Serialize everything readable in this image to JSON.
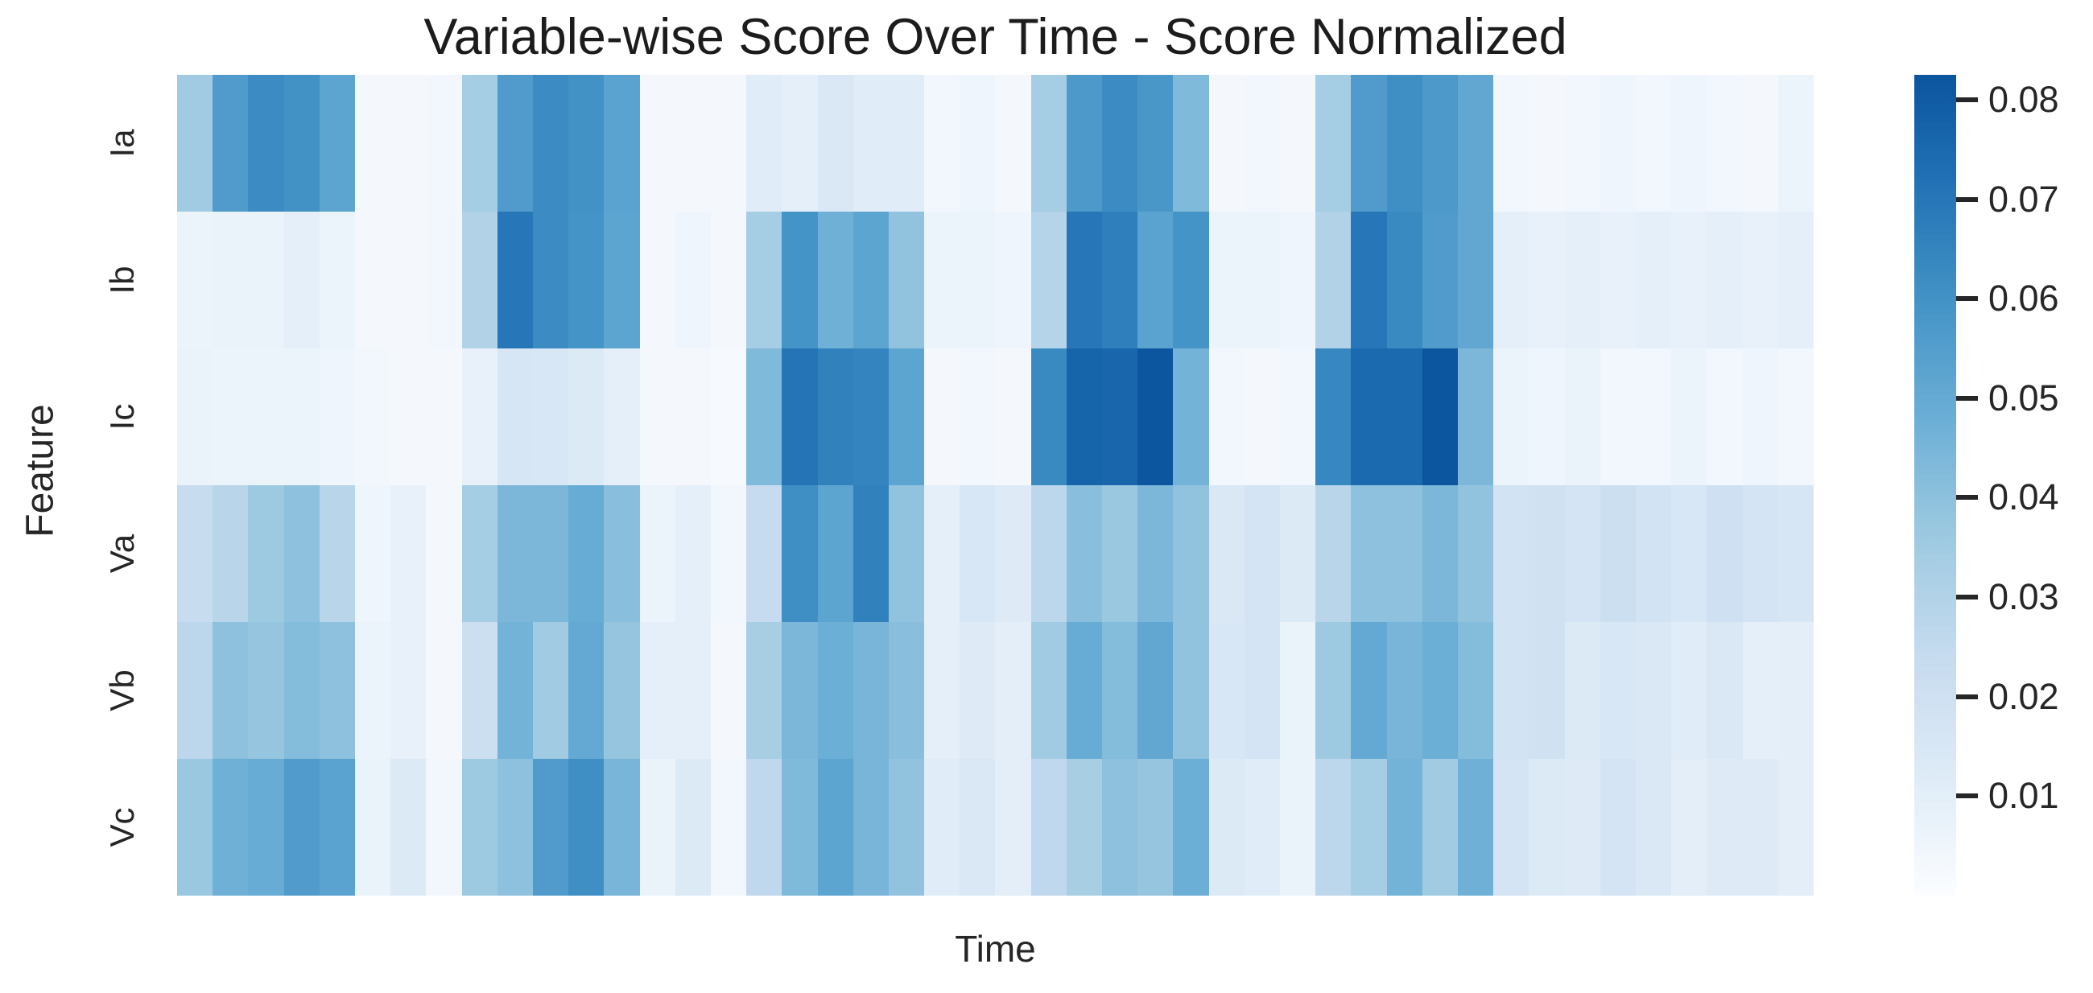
{
  "title": "Variable-wise Score Over Time - Score Normalized",
  "x_axis": {
    "label": "Time"
  },
  "y_axis": {
    "label": "Feature",
    "tick_labels": [
      "Ia",
      "Ib",
      "Ic",
      "Va",
      "Vb",
      "Vc"
    ]
  },
  "colorbar": {
    "ticks": [
      {
        "value": 0.08,
        "label": "0.08"
      },
      {
        "value": 0.07,
        "label": "0.07"
      },
      {
        "value": 0.06,
        "label": "0.06"
      },
      {
        "value": 0.05,
        "label": "0.05"
      },
      {
        "value": 0.04,
        "label": "0.04"
      },
      {
        "value": 0.03,
        "label": "0.03"
      },
      {
        "value": 0.02,
        "label": "0.02"
      },
      {
        "value": 0.01,
        "label": "0.01"
      }
    ]
  },
  "chart_data": {
    "type": "heatmap",
    "title": "Variable-wise Score Over Time - Score Normalized",
    "xlabel": "Time",
    "ylabel": "Feature",
    "x_tick_labels_shown": false,
    "x_count": 46,
    "categories_y": [
      "Ia",
      "Ib",
      "Ic",
      "Va",
      "Vb",
      "Vc"
    ],
    "color_scale": {
      "vmin": 0.0,
      "vmax": 0.0825,
      "cmap_max_fraction": 0.86,
      "top_color": "#05609f",
      "bottom_color": "#fcfdff",
      "text_color": "#262626",
      "title_color": "#1c1c1c"
    },
    "colormap_anchors": [
      {
        "f": 0.0,
        "color": "#fbfdff"
      },
      {
        "f": 0.125,
        "color": "#deebf7"
      },
      {
        "f": 0.25,
        "color": "#c6dbef"
      },
      {
        "f": 0.375,
        "color": "#9ecae1"
      },
      {
        "f": 0.5,
        "color": "#6baed6"
      },
      {
        "f": 0.625,
        "color": "#4292c6"
      },
      {
        "f": 0.75,
        "color": "#2171b5"
      },
      {
        "f": 0.875,
        "color": "#08519c"
      },
      {
        "f": 1.0,
        "color": "#08306b"
      }
    ],
    "series": [
      {
        "name": "Ia",
        "values": [
          0.035,
          0.056,
          0.062,
          0.06,
          0.052,
          0.003,
          0.003,
          0.004,
          0.034,
          0.056,
          0.062,
          0.06,
          0.053,
          0.003,
          0.003,
          0.003,
          0.011,
          0.009,
          0.014,
          0.011,
          0.011,
          0.004,
          0.005,
          0.003,
          0.034,
          0.057,
          0.062,
          0.058,
          0.043,
          0.003,
          0.004,
          0.003,
          0.034,
          0.056,
          0.061,
          0.057,
          0.051,
          0.004,
          0.003,
          0.004,
          0.005,
          0.004,
          0.005,
          0.004,
          0.003,
          0.006
        ]
      },
      {
        "name": "Ib",
        "values": [
          0.006,
          0.007,
          0.007,
          0.009,
          0.006,
          0.003,
          0.003,
          0.004,
          0.03,
          0.07,
          0.062,
          0.059,
          0.052,
          0.003,
          0.005,
          0.003,
          0.034,
          0.059,
          0.047,
          0.052,
          0.039,
          0.006,
          0.006,
          0.005,
          0.029,
          0.07,
          0.067,
          0.053,
          0.059,
          0.006,
          0.006,
          0.005,
          0.03,
          0.07,
          0.063,
          0.056,
          0.051,
          0.009,
          0.008,
          0.009,
          0.008,
          0.009,
          0.008,
          0.009,
          0.008,
          0.009
        ]
      },
      {
        "name": "Ic",
        "values": [
          0.007,
          0.006,
          0.006,
          0.006,
          0.005,
          0.004,
          0.003,
          0.003,
          0.008,
          0.016,
          0.015,
          0.013,
          0.009,
          0.003,
          0.003,
          0.002,
          0.043,
          0.071,
          0.066,
          0.065,
          0.052,
          0.003,
          0.004,
          0.003,
          0.063,
          0.077,
          0.076,
          0.082,
          0.046,
          0.004,
          0.003,
          0.004,
          0.064,
          0.075,
          0.075,
          0.082,
          0.044,
          0.006,
          0.005,
          0.007,
          0.004,
          0.004,
          0.006,
          0.004,
          0.005,
          0.004
        ]
      },
      {
        "name": "Va",
        "values": [
          0.023,
          0.028,
          0.036,
          0.04,
          0.028,
          0.005,
          0.008,
          0.003,
          0.034,
          0.044,
          0.044,
          0.049,
          0.041,
          0.006,
          0.009,
          0.004,
          0.024,
          0.061,
          0.052,
          0.066,
          0.039,
          0.009,
          0.015,
          0.012,
          0.027,
          0.041,
          0.037,
          0.044,
          0.039,
          0.014,
          0.017,
          0.013,
          0.028,
          0.04,
          0.04,
          0.044,
          0.039,
          0.018,
          0.019,
          0.017,
          0.021,
          0.018,
          0.015,
          0.02,
          0.017,
          0.016
        ]
      },
      {
        "name": "Vb",
        "values": [
          0.027,
          0.04,
          0.038,
          0.042,
          0.04,
          0.006,
          0.008,
          0.003,
          0.021,
          0.046,
          0.035,
          0.05,
          0.038,
          0.009,
          0.009,
          0.003,
          0.033,
          0.044,
          0.048,
          0.045,
          0.041,
          0.009,
          0.012,
          0.01,
          0.035,
          0.049,
          0.042,
          0.051,
          0.039,
          0.015,
          0.017,
          0.007,
          0.036,
          0.05,
          0.045,
          0.048,
          0.042,
          0.018,
          0.019,
          0.013,
          0.015,
          0.014,
          0.011,
          0.014,
          0.009,
          0.01
        ]
      },
      {
        "name": "Vc",
        "values": [
          0.037,
          0.047,
          0.049,
          0.056,
          0.053,
          0.007,
          0.013,
          0.004,
          0.036,
          0.04,
          0.056,
          0.061,
          0.045,
          0.007,
          0.013,
          0.004,
          0.026,
          0.043,
          0.052,
          0.045,
          0.039,
          0.011,
          0.014,
          0.01,
          0.026,
          0.033,
          0.04,
          0.038,
          0.048,
          0.013,
          0.011,
          0.007,
          0.027,
          0.034,
          0.046,
          0.035,
          0.047,
          0.017,
          0.013,
          0.012,
          0.017,
          0.014,
          0.01,
          0.012,
          0.012,
          0.01
        ]
      }
    ]
  }
}
